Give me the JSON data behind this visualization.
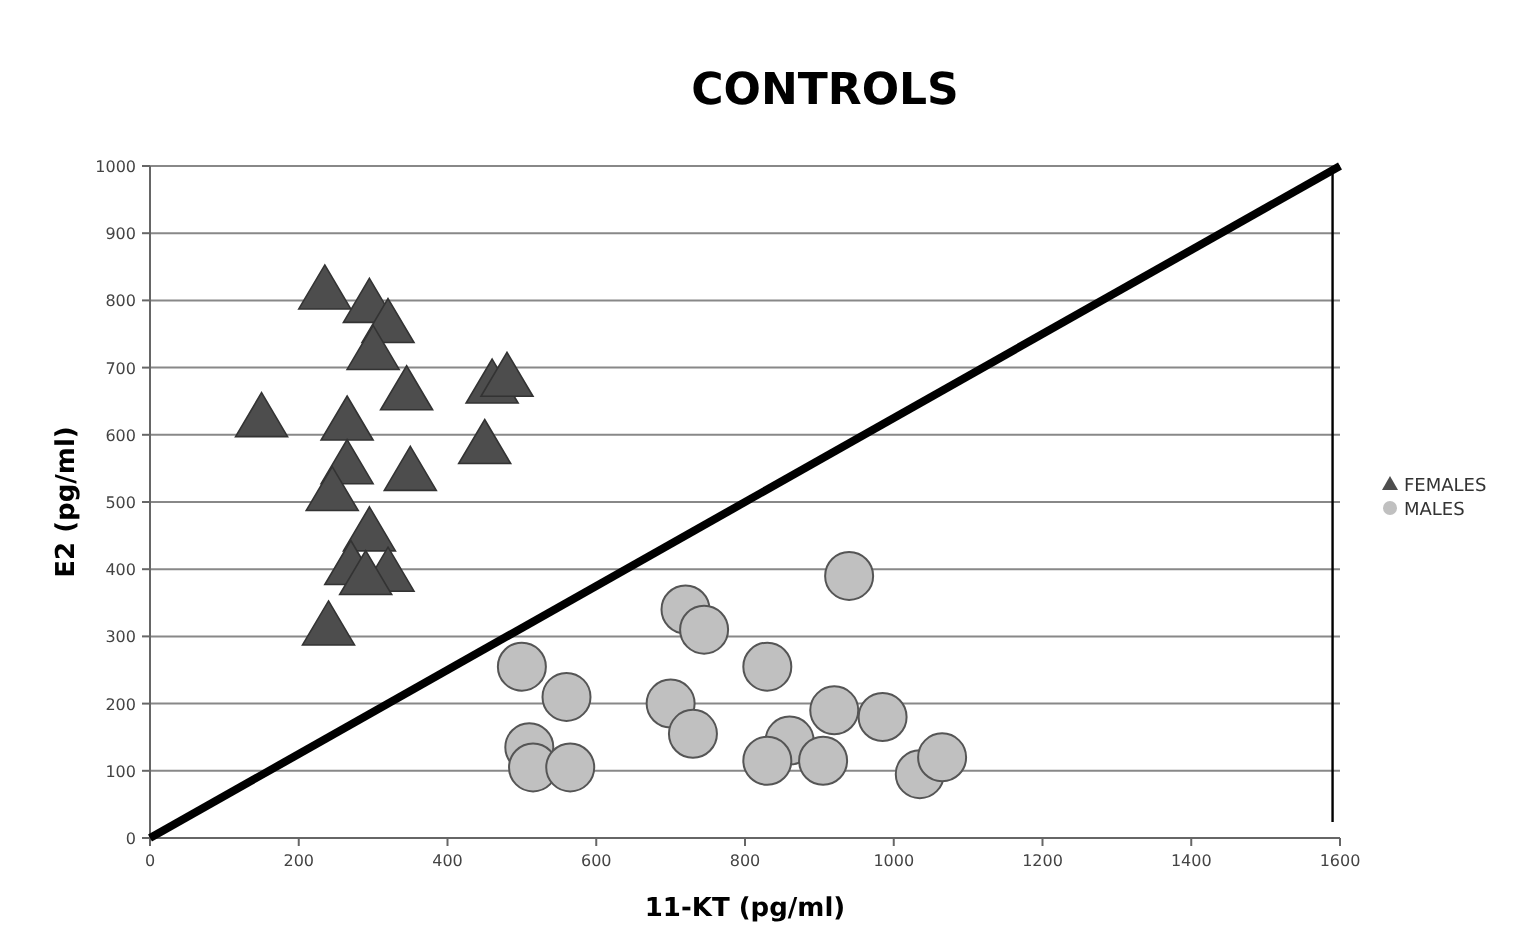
{
  "chart_data": {
    "type": "scatter",
    "title": "CONTROLS",
    "xlabel": "11-KT (pg/ml)",
    "ylabel": "E2 (pg/ml)",
    "xlim": [
      0,
      1600
    ],
    "xticks": [
      0,
      200,
      400,
      600,
      800,
      1000,
      1200,
      1400,
      1600
    ],
    "ylim": [
      0,
      1000
    ],
    "yticks": [
      0,
      100,
      200,
      300,
      400,
      500,
      600,
      700,
      800,
      900,
      1000
    ],
    "grid": "y",
    "legend": "right",
    "series": [
      {
        "name": "FEMALES",
        "color": "#4d4d4d",
        "marker": "triangle",
        "x": [
          235,
          295,
          320,
          300,
          345,
          150,
          265,
          265,
          350,
          245,
          295,
          270,
          320,
          290,
          240,
          460,
          480,
          450
        ],
        "values": [
          820,
          800,
          770,
          730,
          670,
          630,
          625,
          560,
          550,
          520,
          460,
          410,
          400,
          395,
          320,
          680,
          690,
          590
        ]
      },
      {
        "name": "MALES",
        "color": "#c0c0c0",
        "marker": "circle",
        "x": [
          500,
          560,
          510,
          515,
          565,
          720,
          745,
          700,
          730,
          830,
          940,
          860,
          830,
          920,
          905,
          985,
          1035,
          1065
        ],
        "values": [
          255,
          210,
          135,
          105,
          105,
          340,
          310,
          200,
          155,
          255,
          390,
          145,
          115,
          190,
          115,
          180,
          95,
          120
        ]
      },
      {
        "type": "line",
        "color": "#000000",
        "marker": "none",
        "x": [
          0,
          1600
        ],
        "values": [
          0,
          1000
        ]
      }
    ],
    "ref_lines": [
      {
        "axis": "x",
        "value": 1590,
        "color": "#000000"
      }
    ]
  }
}
